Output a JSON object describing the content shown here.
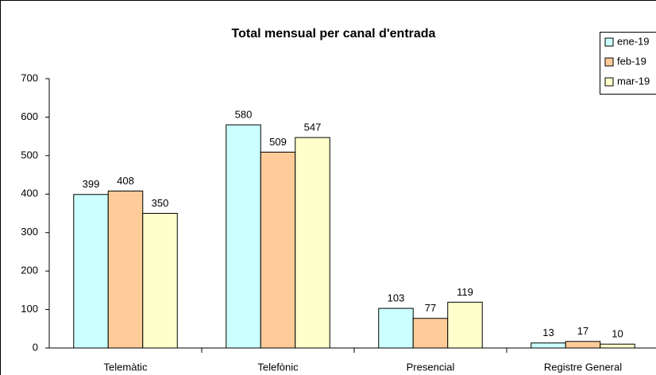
{
  "chart_data": {
    "type": "bar",
    "title": "Total mensual per canal d'entrada",
    "categories": [
      "Telemàtic",
      "Telefònic",
      "Presencial",
      "Registre General"
    ],
    "series": [
      {
        "name": "ene-19",
        "color": "#ccffff",
        "values": [
          399,
          580,
          103,
          13
        ]
      },
      {
        "name": "feb-19",
        "color": "#ffcc99",
        "values": [
          408,
          509,
          77,
          17
        ]
      },
      {
        "name": "mar-19",
        "color": "#ffffcc",
        "values": [
          350,
          547,
          119,
          10
        ]
      }
    ],
    "ylim": [
      0,
      700
    ],
    "yticks": [
      0,
      100,
      200,
      300,
      400,
      500,
      600,
      700
    ],
    "grid": false,
    "legend": "top-right",
    "data_labels": true
  }
}
